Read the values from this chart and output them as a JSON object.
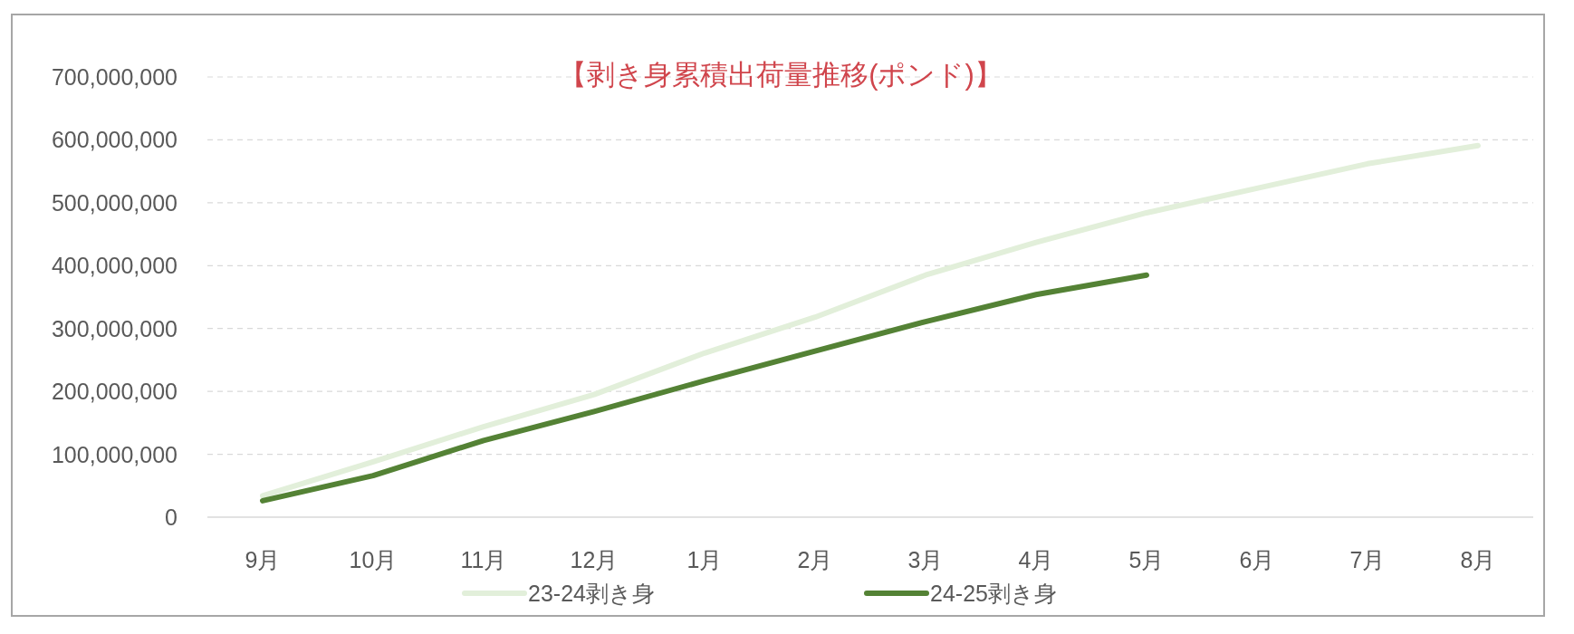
{
  "chart_data": {
    "type": "line",
    "title": "【剥き身累積出荷量推移(ポンド)】",
    "categories": [
      "9月",
      "10月",
      "11月",
      "12月",
      "1月",
      "2月",
      "3月",
      "4月",
      "5月",
      "6月",
      "7月",
      "8月"
    ],
    "series": [
      {
        "name": "23-24剥き身",
        "color": "#e2efda",
        "values": [
          34000000,
          88000000,
          144000000,
          195000000,
          261000000,
          318000000,
          385000000,
          437000000,
          484000000,
          523000000,
          562000000,
          591000000
        ]
      },
      {
        "name": "24-25剥き身",
        "color": "#548235",
        "values": [
          26000000,
          66000000,
          122000000,
          168000000,
          217000000,
          264000000,
          311000000,
          354000000,
          385000000,
          null,
          null,
          null
        ]
      }
    ],
    "ylim": [
      0,
      700000000
    ],
    "yticks": [
      {
        "value": 0,
        "label": "0"
      },
      {
        "value": 100000000,
        "label": "100,000,000"
      },
      {
        "value": 200000000,
        "label": "200,000,000"
      },
      {
        "value": 300000000,
        "label": "300,000,000"
      },
      {
        "value": 400000000,
        "label": "400,000,000"
      },
      {
        "value": 500000000,
        "label": "500,000,000"
      },
      {
        "value": 600000000,
        "label": "600,000,000"
      },
      {
        "value": 700000000,
        "label": "700,000,000"
      }
    ],
    "grid": "y",
    "legend": "bottom",
    "marker": "none",
    "line_style": "solid"
  }
}
